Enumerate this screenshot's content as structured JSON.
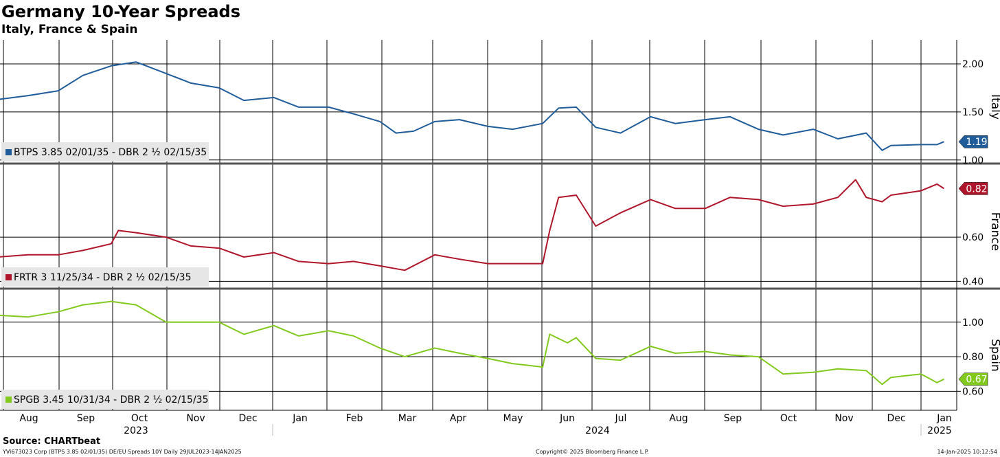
{
  "title": "Germany 10-Year Spreads",
  "subtitle": "Italy, France & Spain",
  "source": "Source: CHARTbeat",
  "footer": {
    "left": "YVi673023 Corp (BTPS 3.85 02/01/35) DE/EU Spreads 10Y  Daily 29JUL2023-14JAN2025",
    "center": "Copyright© 2025 Bloomberg Finance L.P.",
    "right": "14-Jan-2025 10:12:54"
  },
  "x_axis": {
    "months": [
      "Aug",
      "Sep",
      "Oct",
      "Nov",
      "Dec",
      "Jan",
      "Feb",
      "Mar",
      "Apr",
      "May",
      "Jun",
      "Jul",
      "Aug",
      "Sep",
      "Oct",
      "Nov",
      "Dec",
      "Jan"
    ],
    "years": [
      "2023",
      "2024",
      "2025"
    ]
  },
  "chart_data": [
    {
      "type": "line",
      "panel_label": "Italy",
      "legend": "BTPS 3.85 02/01/35 - DBR 2 ½ 02/15/35",
      "last_value": "1.19",
      "color": "#1f5c99",
      "ylim": [
        0.97,
        2.25
      ],
      "yticks": [
        "1.00",
        "1.50",
        "2.00"
      ],
      "x": [
        "2023-07-29",
        "2023-08-15",
        "2023-09-01",
        "2023-09-15",
        "2023-10-01",
        "2023-10-15",
        "2023-11-01",
        "2023-11-15",
        "2023-12-01",
        "2023-12-15",
        "2024-01-01",
        "2024-01-15",
        "2024-02-01",
        "2024-02-15",
        "2024-03-01",
        "2024-03-10",
        "2024-03-20",
        "2024-04-01",
        "2024-04-15",
        "2024-05-01",
        "2024-05-15",
        "2024-06-01",
        "2024-06-10",
        "2024-06-20",
        "2024-07-01",
        "2024-07-15",
        "2024-08-01",
        "2024-08-15",
        "2024-09-01",
        "2024-09-15",
        "2024-10-01",
        "2024-10-15",
        "2024-11-01",
        "2024-11-15",
        "2024-12-01",
        "2024-12-10",
        "2024-12-15",
        "2025-01-01",
        "2025-01-10",
        "2025-01-14"
      ],
      "values": [
        1.63,
        1.67,
        1.72,
        1.88,
        1.98,
        2.02,
        1.9,
        1.8,
        1.75,
        1.62,
        1.65,
        1.55,
        1.55,
        1.48,
        1.4,
        1.28,
        1.3,
        1.4,
        1.42,
        1.35,
        1.32,
        1.38,
        1.54,
        1.55,
        1.34,
        1.28,
        1.45,
        1.38,
        1.42,
        1.45,
        1.32,
        1.26,
        1.32,
        1.22,
        1.28,
        1.1,
        1.15,
        1.16,
        1.16,
        1.19
      ]
    },
    {
      "type": "line",
      "panel_label": "France",
      "legend": "FRTR 3 11/25/34 - DBR 2 ½ 02/15/35",
      "last_value": "0.82",
      "color": "#b0162b",
      "ylim": [
        0.37,
        0.93
      ],
      "yticks": [
        "0.40",
        "0.60"
      ],
      "x": [
        "2023-07-29",
        "2023-08-15",
        "2023-09-01",
        "2023-09-15",
        "2023-10-01",
        "2023-10-05",
        "2023-10-15",
        "2023-11-01",
        "2023-11-15",
        "2023-12-01",
        "2023-12-15",
        "2024-01-01",
        "2024-01-15",
        "2024-02-01",
        "2024-02-15",
        "2024-03-01",
        "2024-03-15",
        "2024-04-01",
        "2024-04-15",
        "2024-05-01",
        "2024-05-15",
        "2024-06-01",
        "2024-06-05",
        "2024-06-10",
        "2024-06-20",
        "2024-07-01",
        "2024-07-15",
        "2024-08-01",
        "2024-08-15",
        "2024-09-01",
        "2024-09-15",
        "2024-10-01",
        "2024-10-15",
        "2024-11-01",
        "2024-11-15",
        "2024-11-25",
        "2024-12-01",
        "2024-12-10",
        "2024-12-15",
        "2025-01-01",
        "2025-01-10",
        "2025-01-14"
      ],
      "values": [
        0.51,
        0.52,
        0.52,
        0.54,
        0.57,
        0.63,
        0.62,
        0.6,
        0.56,
        0.55,
        0.51,
        0.53,
        0.49,
        0.48,
        0.49,
        0.47,
        0.45,
        0.52,
        0.5,
        0.48,
        0.48,
        0.48,
        0.63,
        0.78,
        0.79,
        0.65,
        0.71,
        0.77,
        0.73,
        0.73,
        0.78,
        0.77,
        0.74,
        0.75,
        0.78,
        0.86,
        0.78,
        0.76,
        0.79,
        0.81,
        0.84,
        0.82
      ]
    },
    {
      "type": "line",
      "panel_label": "Spain",
      "legend": "SPGB 3.45 10/31/34 - DBR 2 ½ 02/15/35",
      "last_value": "0.67",
      "color": "#82c91e",
      "ylim": [
        0.49,
        1.19
      ],
      "yticks": [
        "0.60",
        "0.80",
        "1.00"
      ],
      "x": [
        "2023-07-29",
        "2023-08-15",
        "2023-09-01",
        "2023-09-15",
        "2023-10-01",
        "2023-10-15",
        "2023-11-01",
        "2023-11-15",
        "2023-12-01",
        "2023-12-15",
        "2024-01-01",
        "2024-01-15",
        "2024-02-01",
        "2024-02-15",
        "2024-03-01",
        "2024-03-15",
        "2024-04-01",
        "2024-04-15",
        "2024-05-01",
        "2024-05-15",
        "2024-06-01",
        "2024-06-05",
        "2024-06-15",
        "2024-06-20",
        "2024-07-01",
        "2024-07-15",
        "2024-08-01",
        "2024-08-15",
        "2024-09-01",
        "2024-09-15",
        "2024-10-01",
        "2024-10-15",
        "2024-11-01",
        "2024-11-15",
        "2024-12-01",
        "2024-12-10",
        "2024-12-15",
        "2025-01-01",
        "2025-01-10",
        "2025-01-14"
      ],
      "values": [
        1.04,
        1.03,
        1.06,
        1.1,
        1.12,
        1.1,
        1.0,
        1.0,
        1.0,
        0.93,
        0.98,
        0.92,
        0.95,
        0.92,
        0.85,
        0.8,
        0.85,
        0.82,
        0.79,
        0.76,
        0.74,
        0.93,
        0.88,
        0.91,
        0.79,
        0.78,
        0.86,
        0.82,
        0.83,
        0.81,
        0.8,
        0.7,
        0.71,
        0.73,
        0.72,
        0.64,
        0.68,
        0.7,
        0.65,
        0.67
      ]
    }
  ]
}
